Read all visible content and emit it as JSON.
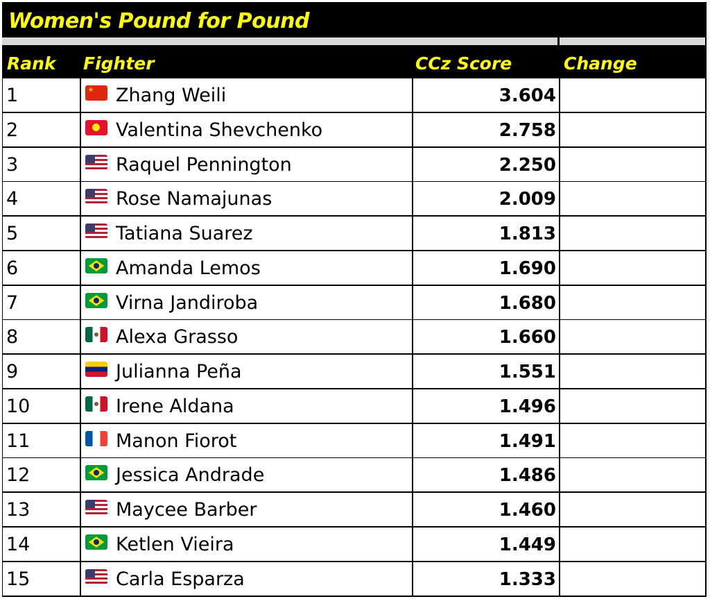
{
  "title": "Women's Pound for Pound",
  "headers": {
    "rank": "Rank",
    "fighter": "Fighter",
    "score": "CCz Score",
    "change": "Change"
  },
  "rows": [
    {
      "rank": "1",
      "flag": "china-flag",
      "fighter": "Zhang Weili",
      "score": "3.604",
      "change": ""
    },
    {
      "rank": "2",
      "flag": "kyrgyzstan-flag",
      "fighter": "Valentina Shevchenko",
      "score": "2.758",
      "change": ""
    },
    {
      "rank": "3",
      "flag": "usa-flag",
      "fighter": "Raquel Pennington",
      "score": "2.250",
      "change": ""
    },
    {
      "rank": "4",
      "flag": "usa-flag",
      "fighter": "Rose Namajunas",
      "score": "2.009",
      "change": ""
    },
    {
      "rank": "5",
      "flag": "usa-flag",
      "fighter": "Tatiana Suarez",
      "score": "1.813",
      "change": ""
    },
    {
      "rank": "6",
      "flag": "brazil-flag",
      "fighter": "Amanda Lemos",
      "score": "1.690",
      "change": ""
    },
    {
      "rank": "7",
      "flag": "brazil-flag",
      "fighter": "Virna Jandiroba",
      "score": "1.680",
      "change": ""
    },
    {
      "rank": "8",
      "flag": "mexico-flag",
      "fighter": "Alexa Grasso",
      "score": "1.660",
      "change": ""
    },
    {
      "rank": "9",
      "flag": "venezuela-flag",
      "fighter": "Julianna Peña",
      "score": "1.551",
      "change": ""
    },
    {
      "rank": "10",
      "flag": "mexico-flag",
      "fighter": "Irene Aldana",
      "score": "1.496",
      "change": ""
    },
    {
      "rank": "11",
      "flag": "france-flag",
      "fighter": "Manon Fiorot",
      "score": "1.491",
      "change": ""
    },
    {
      "rank": "12",
      "flag": "brazil-flag",
      "fighter": "Jessica Andrade",
      "score": "1.486",
      "change": ""
    },
    {
      "rank": "13",
      "flag": "usa-flag",
      "fighter": "Maycee Barber",
      "score": "1.460",
      "change": ""
    },
    {
      "rank": "14",
      "flag": "brazil-flag",
      "fighter": "Ketlen Vieira",
      "score": "1.449",
      "change": ""
    },
    {
      "rank": "15",
      "flag": "usa-flag",
      "fighter": "Carla Esparza",
      "score": "1.333",
      "change": ""
    }
  ]
}
